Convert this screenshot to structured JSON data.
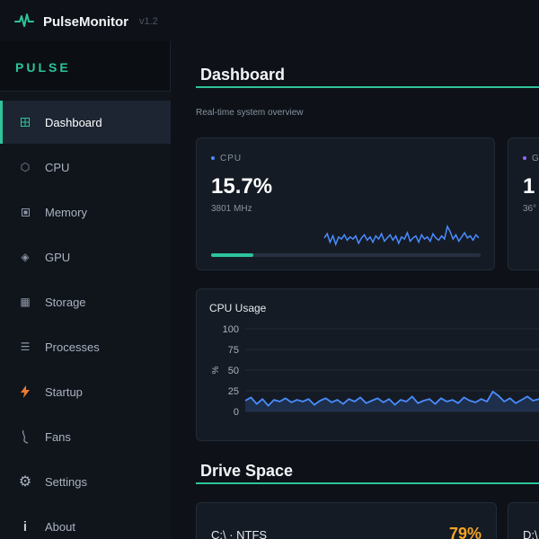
{
  "app": {
    "title": "PulseMonitor",
    "version": "v1.2"
  },
  "sidebar": {
    "brand": "PULSE",
    "items": [
      {
        "label": "Dashboard",
        "icon": "grid-icon",
        "active": true
      },
      {
        "label": "CPU",
        "icon": "hexagon-icon"
      },
      {
        "label": "Memory",
        "icon": "memory-icon"
      },
      {
        "label": "GPU",
        "icon": "diamond-icon"
      },
      {
        "label": "Storage",
        "icon": "storage-icon"
      },
      {
        "label": "Processes",
        "icon": "list-icon"
      },
      {
        "label": "Startup",
        "icon": "lightning-icon"
      },
      {
        "label": "Fans",
        "icon": "fan-icon"
      },
      {
        "label": "Settings",
        "icon": "gear-icon"
      },
      {
        "label": "About",
        "icon": "info-icon"
      }
    ]
  },
  "dashboard": {
    "title": "Dashboard",
    "subtitle": "Real-time system overview",
    "cards": [
      {
        "label": "CPU",
        "value": "15.7%",
        "sub": "3801 MHz",
        "progress": 0.157,
        "dot_color": "#4a8cff",
        "spark_color": "#4a8cff"
      },
      {
        "label": "G",
        "value": "1",
        "sub": "36°",
        "dot_color": "#8b6cff"
      }
    ],
    "cpu_chart": {
      "title": "CPU Usage",
      "ylabel": "%"
    }
  },
  "drives": {
    "title": "Drive Space",
    "items": [
      {
        "label": "C:\\  ·  NTFS",
        "percent": "79%"
      },
      {
        "label": "D:\\"
      }
    ]
  },
  "colors": {
    "accent": "#2ec39a",
    "cpu_series": "#4a8cff",
    "warning": "#f5a524"
  },
  "chart_data": {
    "type": "line",
    "title": "CPU Usage",
    "ylabel": "%",
    "ylim": [
      0,
      100
    ],
    "yticks": [
      0,
      25,
      50,
      75,
      100
    ],
    "grid": true,
    "series": [
      {
        "values": [
          13,
          17,
          9,
          15,
          7,
          14,
          12,
          16,
          11,
          14,
          12,
          15,
          8,
          13,
          16,
          11,
          14,
          9,
          15,
          12,
          17,
          10,
          13,
          16,
          11,
          15,
          8,
          14,
          12,
          18,
          10,
          13,
          15,
          9,
          16,
          12,
          14,
          10,
          17,
          13,
          11,
          15,
          12,
          24,
          19,
          12,
          16,
          10,
          14,
          18,
          13,
          15,
          11,
          16,
          13
        ]
      }
    ]
  }
}
